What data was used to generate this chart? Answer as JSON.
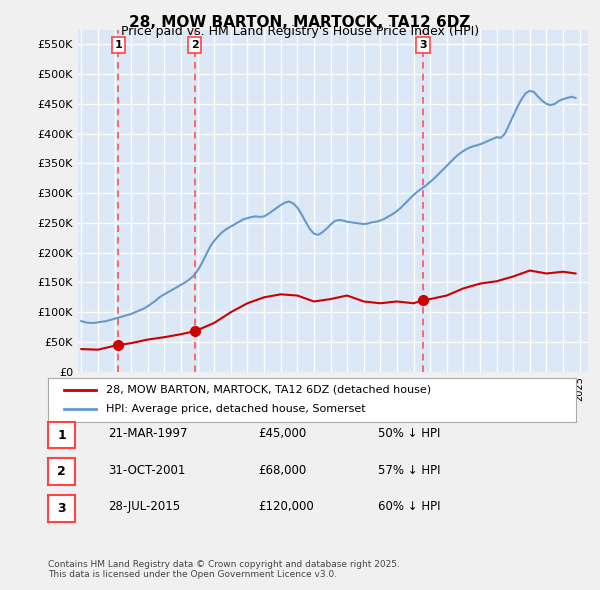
{
  "title": "28, MOW BARTON, MARTOCK, TA12 6DZ",
  "subtitle": "Price paid vs. HM Land Registry's House Price Index (HPI)",
  "bg_color": "#e8f0f8",
  "plot_bg_color": "#dce8f5",
  "grid_color": "#ffffff",
  "red_line_color": "#cc0000",
  "blue_line_color": "#6699cc",
  "sale_marker_color": "#cc0000",
  "vline_color": "#ff4444",
  "ylim": [
    0,
    575000
  ],
  "yticks": [
    0,
    50000,
    100000,
    150000,
    200000,
    250000,
    300000,
    350000,
    400000,
    450000,
    500000,
    550000
  ],
  "ytick_labels": [
    "£0",
    "£50K",
    "£100K",
    "£150K",
    "£200K",
    "£250K",
    "£300K",
    "£350K",
    "£400K",
    "£450K",
    "£500K",
    "£550K"
  ],
  "sales": [
    {
      "date_num": 1997.22,
      "price": 45000,
      "label": "1"
    },
    {
      "date_num": 2001.83,
      "price": 68000,
      "label": "2"
    },
    {
      "date_num": 2015.57,
      "price": 120000,
      "label": "3"
    }
  ],
  "sale_labels_info": [
    {
      "label": "1",
      "date": "21-MAR-1997",
      "price": "£45,000",
      "pct": "50% ↓ HPI"
    },
    {
      "label": "2",
      "date": "31-OCT-2001",
      "price": "£68,000",
      "pct": "57% ↓ HPI"
    },
    {
      "label": "3",
      "date": "28-JUL-2015",
      "price": "£120,000",
      "pct": "60% ↓ HPI"
    }
  ],
  "legend_line1": "28, MOW BARTON, MARTOCK, TA12 6DZ (detached house)",
  "legend_line2": "HPI: Average price, detached house, Somerset",
  "footer": "Contains HM Land Registry data © Crown copyright and database right 2025.\nThis data is licensed under the Open Government Licence v3.0.",
  "hpi_data": {
    "x": [
      1995.0,
      1995.25,
      1995.5,
      1995.75,
      1996.0,
      1996.25,
      1996.5,
      1996.75,
      1997.0,
      1997.25,
      1997.5,
      1997.75,
      1998.0,
      1998.25,
      1998.5,
      1998.75,
      1999.0,
      1999.25,
      1999.5,
      1999.75,
      2000.0,
      2000.25,
      2000.5,
      2000.75,
      2001.0,
      2001.25,
      2001.5,
      2001.75,
      2002.0,
      2002.25,
      2002.5,
      2002.75,
      2003.0,
      2003.25,
      2003.5,
      2003.75,
      2004.0,
      2004.25,
      2004.5,
      2004.75,
      2005.0,
      2005.25,
      2005.5,
      2005.75,
      2006.0,
      2006.25,
      2006.5,
      2006.75,
      2007.0,
      2007.25,
      2007.5,
      2007.75,
      2008.0,
      2008.25,
      2008.5,
      2008.75,
      2009.0,
      2009.25,
      2009.5,
      2009.75,
      2010.0,
      2010.25,
      2010.5,
      2010.75,
      2011.0,
      2011.25,
      2011.5,
      2011.75,
      2012.0,
      2012.25,
      2012.5,
      2012.75,
      2013.0,
      2013.25,
      2013.5,
      2013.75,
      2014.0,
      2014.25,
      2014.5,
      2014.75,
      2015.0,
      2015.25,
      2015.5,
      2015.75,
      2016.0,
      2016.25,
      2016.5,
      2016.75,
      2017.0,
      2017.25,
      2017.5,
      2017.75,
      2018.0,
      2018.25,
      2018.5,
      2018.75,
      2019.0,
      2019.25,
      2019.5,
      2019.75,
      2020.0,
      2020.25,
      2020.5,
      2020.75,
      2021.0,
      2021.25,
      2021.5,
      2021.75,
      2022.0,
      2022.25,
      2022.5,
      2022.75,
      2023.0,
      2023.25,
      2023.5,
      2023.75,
      2024.0,
      2024.25,
      2024.5,
      2024.75
    ],
    "y": [
      85000,
      83000,
      82000,
      82000,
      83000,
      84000,
      85000,
      87000,
      89000,
      91000,
      93000,
      95000,
      97000,
      100000,
      103000,
      106000,
      110000,
      115000,
      120000,
      126000,
      130000,
      134000,
      138000,
      142000,
      146000,
      150000,
      155000,
      161000,
      170000,
      182000,
      196000,
      210000,
      220000,
      228000,
      235000,
      240000,
      244000,
      248000,
      252000,
      256000,
      258000,
      260000,
      261000,
      260000,
      261000,
      265000,
      270000,
      275000,
      280000,
      284000,
      286000,
      283000,
      276000,
      265000,
      252000,
      240000,
      232000,
      230000,
      234000,
      240000,
      247000,
      253000,
      255000,
      254000,
      252000,
      251000,
      250000,
      249000,
      248000,
      249000,
      251000,
      252000,
      254000,
      257000,
      261000,
      265000,
      270000,
      276000,
      283000,
      290000,
      297000,
      303000,
      308000,
      313000,
      319000,
      325000,
      332000,
      339000,
      346000,
      353000,
      360000,
      366000,
      371000,
      375000,
      378000,
      380000,
      382000,
      385000,
      388000,
      391000,
      394000,
      393000,
      400000,
      415000,
      430000,
      445000,
      458000,
      468000,
      472000,
      470000,
      462000,
      455000,
      450000,
      448000,
      450000,
      455000,
      458000,
      460000,
      462000,
      460000
    ]
  },
  "red_data": {
    "x": [
      1995.0,
      1996.0,
      1997.22,
      1997.5,
      1998.0,
      1999.0,
      2000.0,
      2001.0,
      2001.83,
      2002.0,
      2003.0,
      2004.0,
      2005.0,
      2006.0,
      2007.0,
      2008.0,
      2009.0,
      2010.0,
      2011.0,
      2012.0,
      2013.0,
      2014.0,
      2015.0,
      2015.57,
      2016.0,
      2017.0,
      2018.0,
      2019.0,
      2020.0,
      2021.0,
      2022.0,
      2023.0,
      2024.0,
      2024.75
    ],
    "y": [
      38000,
      37000,
      45000,
      46000,
      48000,
      54000,
      58000,
      63000,
      68000,
      70000,
      82000,
      100000,
      115000,
      125000,
      130000,
      128000,
      118000,
      122000,
      128000,
      118000,
      115000,
      118000,
      115000,
      120000,
      122000,
      128000,
      140000,
      148000,
      152000,
      160000,
      170000,
      165000,
      168000,
      165000
    ]
  }
}
